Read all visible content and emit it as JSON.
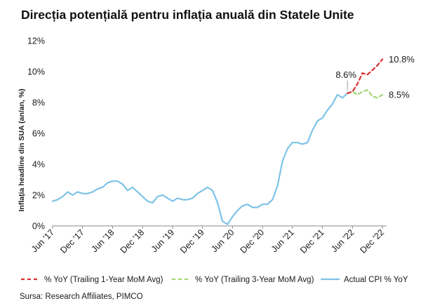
{
  "chart_data": {
    "type": "line",
    "title": "Direcția potențială pentru inflația anuală din Statele Unite",
    "ylabel": "Inflația headline din SUA (an/an, %)",
    "xlabel": "",
    "ylim": [
      0,
      12
    ],
    "y_ticks": [
      "0%",
      "2%",
      "4%",
      "6%",
      "8%",
      "10%",
      "12%"
    ],
    "x_tick_labels": [
      "Jun '17",
      "Dec '17",
      "Jun '18",
      "Dec '18",
      "Jun '19",
      "Dec '19",
      "Jun '20",
      "Dec '20",
      "Jun '21",
      "Dec '21",
      "Jun '22",
      "Dec '22"
    ],
    "x_range": [
      "2017-06",
      "2022-12"
    ],
    "grid": false,
    "legend_position": "bottom",
    "source": "Sursa: Research Affiliates, PIMCO",
    "annotations": [
      {
        "text": "8.6%",
        "x": "2022-05",
        "y": 8.6
      },
      {
        "text": "10.8%",
        "x": "2022-12",
        "y": 10.8
      },
      {
        "text": "8.5%",
        "x": "2022-12",
        "y": 8.5
      }
    ],
    "series": [
      {
        "name": "Actual CPI % YoY",
        "color": "#7ec3e6",
        "style": "solid",
        "x": [
          "2017-06",
          "2017-07",
          "2017-08",
          "2017-09",
          "2017-10",
          "2017-11",
          "2017-12",
          "2018-01",
          "2018-02",
          "2018-03",
          "2018-04",
          "2018-05",
          "2018-06",
          "2018-07",
          "2018-08",
          "2018-09",
          "2018-10",
          "2018-11",
          "2018-12",
          "2019-01",
          "2019-02",
          "2019-03",
          "2019-04",
          "2019-05",
          "2019-06",
          "2019-07",
          "2019-08",
          "2019-09",
          "2019-10",
          "2019-11",
          "2019-12",
          "2020-01",
          "2020-02",
          "2020-03",
          "2020-04",
          "2020-05",
          "2020-06",
          "2020-07",
          "2020-08",
          "2020-09",
          "2020-10",
          "2020-11",
          "2020-12",
          "2021-01",
          "2021-02",
          "2021-03",
          "2021-04",
          "2021-05",
          "2021-06",
          "2021-07",
          "2021-08",
          "2021-09",
          "2021-10",
          "2021-11",
          "2021-12",
          "2022-01",
          "2022-02",
          "2022-03",
          "2022-04",
          "2022-05"
        ],
        "values": [
          1.6,
          1.7,
          1.9,
          2.2,
          2.0,
          2.2,
          2.1,
          2.1,
          2.2,
          2.4,
          2.5,
          2.8,
          2.9,
          2.9,
          2.7,
          2.3,
          2.5,
          2.2,
          1.9,
          1.6,
          1.5,
          1.9,
          2.0,
          1.8,
          1.6,
          1.8,
          1.7,
          1.7,
          1.8,
          2.1,
          2.3,
          2.5,
          2.3,
          1.5,
          0.3,
          0.1,
          0.6,
          1.0,
          1.3,
          1.4,
          1.2,
          1.2,
          1.4,
          1.4,
          1.7,
          2.6,
          4.2,
          5.0,
          5.4,
          5.4,
          5.3,
          5.4,
          6.2,
          6.8,
          7.0,
          7.5,
          7.9,
          8.5,
          8.3,
          8.6
        ]
      },
      {
        "name": "% YoY (Trailing 1-Year MoM Avg)",
        "color": "#d93030",
        "style": "dashed",
        "x": [
          "2022-05",
          "2022-06",
          "2022-07",
          "2022-08",
          "2022-09",
          "2022-10",
          "2022-11",
          "2022-12"
        ],
        "values": [
          8.6,
          8.7,
          9.2,
          9.9,
          9.8,
          10.1,
          10.4,
          10.8
        ]
      },
      {
        "name": "% YoY (Trailing 3-Year MoM Avg)",
        "color": "#a6d472",
        "style": "dashed",
        "x": [
          "2022-05",
          "2022-06",
          "2022-07",
          "2022-08",
          "2022-09",
          "2022-10",
          "2022-11",
          "2022-12"
        ],
        "values": [
          8.6,
          8.7,
          8.5,
          8.7,
          8.8,
          8.4,
          8.3,
          8.5
        ]
      }
    ]
  }
}
